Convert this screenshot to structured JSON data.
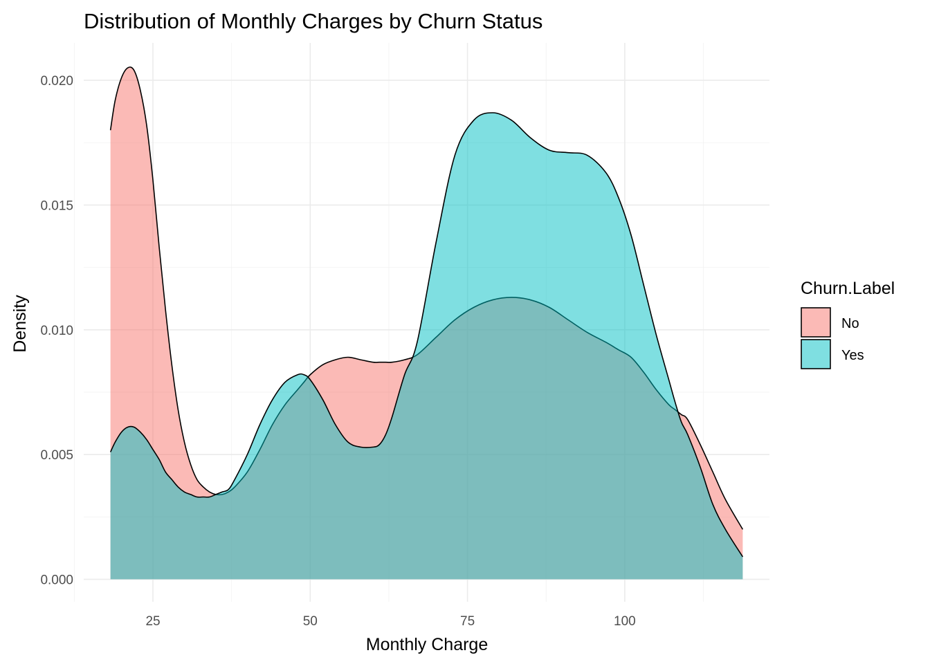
{
  "chart_data": {
    "type": "area",
    "title": "Distribution of Monthly Charges by Churn Status",
    "xlabel": "Monthly Charge",
    "ylabel": "Density",
    "xlim": [
      14,
      123
    ],
    "ylim": [
      -0.0009,
      0.0215
    ],
    "x_ticks": [
      25,
      50,
      75,
      100
    ],
    "x_tick_labels": [
      "25",
      "50",
      "75",
      "100"
    ],
    "y_ticks": [
      0.0,
      0.005,
      0.01,
      0.015,
      0.02
    ],
    "y_tick_labels": [
      "0.000",
      "0.005",
      "0.010",
      "0.015",
      "0.020"
    ],
    "grid": true,
    "legend": {
      "title": "Churn.Label",
      "position": "right"
    },
    "x": [
      18.25,
      19,
      20,
      21,
      22,
      23,
      24,
      25,
      26,
      27,
      28,
      29,
      30,
      31,
      32,
      33,
      34,
      35,
      36,
      37,
      38,
      40,
      42,
      44,
      46,
      48,
      49,
      50,
      52,
      54,
      56,
      58,
      60,
      61,
      62,
      63,
      65,
      67,
      70,
      73,
      76,
      79,
      82,
      85,
      88,
      91,
      94,
      97,
      99,
      101,
      103,
      105,
      107,
      108,
      109,
      110,
      112,
      114,
      116,
      118.75
    ],
    "series": [
      {
        "name": "No",
        "color": "#F8766D",
        "values": [
          0.018,
          0.0192,
          0.0201,
          0.0205,
          0.0204,
          0.0196,
          0.0182,
          0.016,
          0.0133,
          0.0108,
          0.0086,
          0.0068,
          0.0055,
          0.0046,
          0.004,
          0.0037,
          0.0035,
          0.0034,
          0.0034,
          0.0035,
          0.0037,
          0.0043,
          0.0052,
          0.0062,
          0.007,
          0.0076,
          0.0079,
          0.0082,
          0.0086,
          0.0088,
          0.0089,
          0.0088,
          0.0087,
          0.0087,
          0.0087,
          0.0087,
          0.0088,
          0.009,
          0.0097,
          0.0104,
          0.0109,
          0.0112,
          0.0113,
          0.0112,
          0.0109,
          0.0104,
          0.0099,
          0.0095,
          0.0092,
          0.0089,
          0.0083,
          0.0076,
          0.007,
          0.0068,
          0.0066,
          0.0064,
          0.0054,
          0.0043,
          0.0032,
          0.002
        ]
      },
      {
        "name": "Yes",
        "color": "#00BFC4",
        "values": [
          0.0051,
          0.0055,
          0.0059,
          0.0061,
          0.0061,
          0.0059,
          0.0056,
          0.0052,
          0.0048,
          0.0043,
          0.004,
          0.0037,
          0.0035,
          0.0034,
          0.0033,
          0.0033,
          0.0033,
          0.0034,
          0.0035,
          0.0036,
          0.004,
          0.005,
          0.0062,
          0.0072,
          0.0079,
          0.0082,
          0.0082,
          0.008,
          0.0072,
          0.0062,
          0.0055,
          0.0053,
          0.0053,
          0.0054,
          0.0058,
          0.0065,
          0.0082,
          0.0095,
          0.0135,
          0.017,
          0.0184,
          0.0187,
          0.0184,
          0.0177,
          0.0172,
          0.0171,
          0.017,
          0.0163,
          0.0153,
          0.0138,
          0.0118,
          0.0098,
          0.008,
          0.0071,
          0.0063,
          0.0058,
          0.0045,
          0.003,
          0.002,
          0.0009
        ]
      }
    ]
  }
}
